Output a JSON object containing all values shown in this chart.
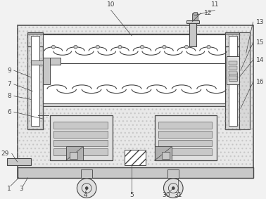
{
  "bg_color": "#f2f2f2",
  "lc": "#555555",
  "dc": "#444444",
  "white": "#ffffff",
  "light_gray": "#e0e0e0",
  "med_gray": "#c8c8c8",
  "dark_gray": "#b0b0b0",
  "dotted_color": "#cccccc"
}
